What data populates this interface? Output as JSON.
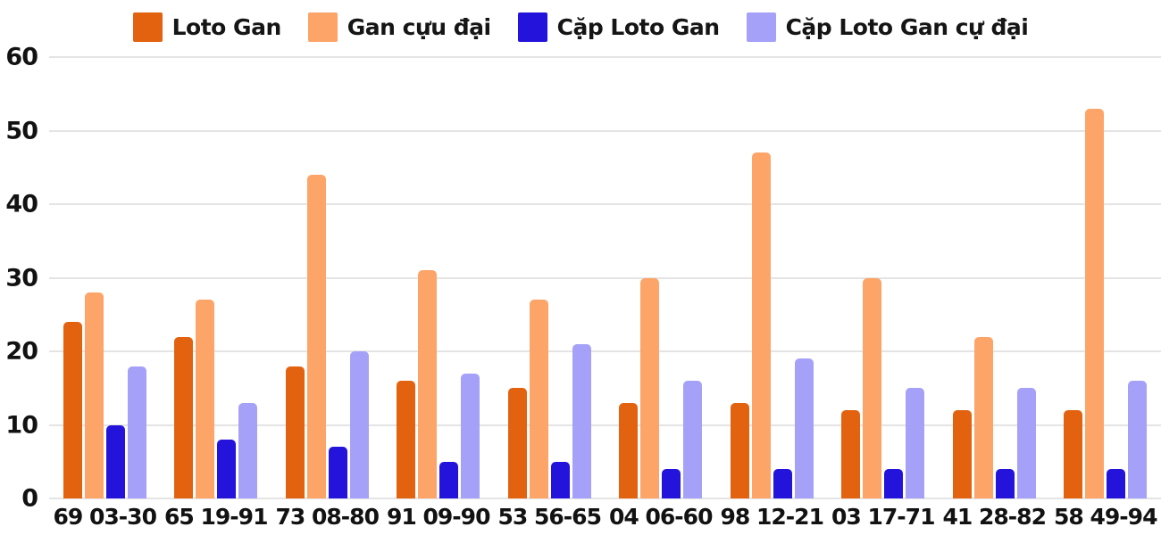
{
  "chart_data": {
    "type": "bar",
    "title": "",
    "xlabel": "",
    "ylabel": "",
    "categories": [
      "69 03-30",
      "65 19-91",
      "73 08-80",
      "91 09-90",
      "53 56-65",
      "04 06-60",
      "98 12-21",
      "03 17-71",
      "41 28-82",
      "58 49-94"
    ],
    "series": [
      {
        "name": "Loto Gan",
        "color": "#e2620f",
        "values": [
          24,
          22,
          18,
          16,
          15,
          13,
          13,
          12,
          12,
          12
        ]
      },
      {
        "name": "Gan cựu đại",
        "color": "#fda469",
        "values": [
          28,
          27,
          44,
          31,
          27,
          30,
          47,
          30,
          22,
          53
        ]
      },
      {
        "name": "Cặp Loto Gan",
        "color": "#2413db",
        "values": [
          10,
          8,
          7,
          5,
          5,
          4,
          4,
          4,
          4,
          4
        ]
      },
      {
        "name": "Cặp Loto Gan cự đại",
        "color": "#a6a1f8",
        "values": [
          18,
          13,
          20,
          17,
          21,
          16,
          19,
          15,
          15,
          16
        ]
      }
    ],
    "ylim": [
      0,
      60
    ],
    "yticks": [
      0,
      10,
      20,
      30,
      40,
      50,
      60
    ],
    "grid": true,
    "legend_position": "top",
    "grid_color": "#e4e4e4",
    "text_color": "#121212",
    "background": "#ffffff"
  }
}
